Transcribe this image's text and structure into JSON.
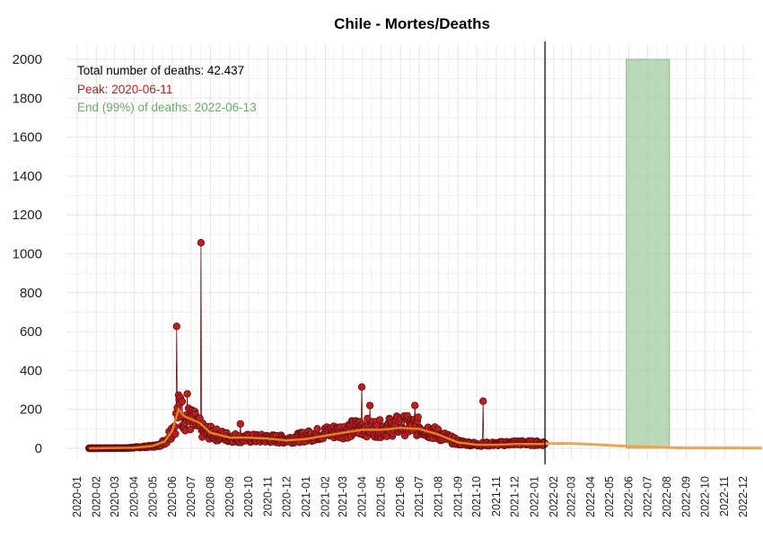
{
  "chart_data": {
    "type": "line",
    "title": "Chile - Mortes/Deaths",
    "xlabel": "",
    "ylabel": "",
    "ylim": [
      0,
      2000
    ],
    "yticks": [
      0,
      200,
      400,
      600,
      800,
      1000,
      1200,
      1400,
      1600,
      1800,
      2000
    ],
    "xlim": [
      "2019-12-15",
      "2023-01-15"
    ],
    "xticks": [
      "2020-01",
      "2020-02",
      "2020-03",
      "2020-04",
      "2020-05",
      "2020-06",
      "2020-07",
      "2020-08",
      "2020-09",
      "2020-10",
      "2020-11",
      "2020-12",
      "2021-01",
      "2021-02",
      "2021-03",
      "2021-04",
      "2021-05",
      "2021-06",
      "2021-07",
      "2021-08",
      "2021-09",
      "2021-10",
      "2021-11",
      "2021-12",
      "2022-01",
      "2022-02",
      "2022-03",
      "2022-04",
      "2022-05",
      "2022-06",
      "2022-07",
      "2022-08",
      "2022-09",
      "2022-10",
      "2022-11",
      "2022-12"
    ],
    "grid": true,
    "annotations": {
      "total": "Total number of deaths: 42.437",
      "peak": "Peak: 2020-06-11",
      "end": "End (99%) of deaths: 2022-06-13"
    },
    "data_cutoff": "2022-01-18",
    "shaded_region": {
      "start": "2022-05-28",
      "end": "2022-08-05",
      "color": "#a5cba3"
    },
    "colors": {
      "observed": "#b22222",
      "observed_edge": "#6b0f0f",
      "smooth": "#e67e22",
      "forecast": "#e8a552",
      "cutoff": "#000000"
    },
    "series": [
      {
        "type": "observed_daily",
        "anchors": [
          [
            "2020-01-20",
            0
          ],
          [
            "2020-03-20",
            1
          ],
          [
            "2020-04-10",
            6
          ],
          [
            "2020-04-25",
            9
          ],
          [
            "2020-05-10",
            14
          ],
          [
            "2020-05-22",
            40
          ],
          [
            "2020-06-05",
            120
          ],
          [
            "2020-06-12",
            210
          ],
          [
            "2020-06-20",
            160
          ],
          [
            "2020-07-05",
            140
          ],
          [
            "2020-07-20",
            90
          ],
          [
            "2020-08-10",
            70
          ],
          [
            "2020-09-01",
            55
          ],
          [
            "2020-10-01",
            50
          ],
          [
            "2020-11-01",
            50
          ],
          [
            "2020-12-01",
            45
          ],
          [
            "2021-01-01",
            60
          ],
          [
            "2021-02-01",
            80
          ],
          [
            "2021-03-01",
            90
          ],
          [
            "2021-04-01",
            110
          ],
          [
            "2021-05-01",
            100
          ],
          [
            "2021-06-01",
            120
          ],
          [
            "2021-07-01",
            110
          ],
          [
            "2021-08-01",
            70
          ],
          [
            "2021-09-01",
            30
          ],
          [
            "2021-10-01",
            20
          ],
          [
            "2021-11-01",
            22
          ],
          [
            "2021-12-01",
            28
          ],
          [
            "2022-01-18",
            25
          ]
        ],
        "spikes": [
          [
            "2020-06-08",
            627
          ],
          [
            "2020-06-14",
            260
          ],
          [
            "2020-06-25",
            280
          ],
          [
            "2020-07-17",
            1057
          ],
          [
            "2020-09-18",
            125
          ],
          [
            "2021-03-31",
            315
          ],
          [
            "2021-04-13",
            220
          ],
          [
            "2021-06-24",
            220
          ],
          [
            "2021-10-11",
            242
          ]
        ]
      },
      {
        "type": "smoothed",
        "points": [
          [
            "2020-01-20",
            0
          ],
          [
            "2020-04-01",
            3
          ],
          [
            "2020-05-01",
            12
          ],
          [
            "2020-05-20",
            35
          ],
          [
            "2020-06-01",
            90
          ],
          [
            "2020-06-11",
            200
          ],
          [
            "2020-06-20",
            165
          ],
          [
            "2020-07-01",
            150
          ],
          [
            "2020-07-15",
            130
          ],
          [
            "2020-08-01",
            80
          ],
          [
            "2020-09-01",
            55
          ],
          [
            "2020-10-01",
            55
          ],
          [
            "2020-11-01",
            50
          ],
          [
            "2020-12-01",
            40
          ],
          [
            "2021-01-01",
            48
          ],
          [
            "2021-02-01",
            65
          ],
          [
            "2021-03-01",
            80
          ],
          [
            "2021-04-01",
            95
          ],
          [
            "2021-05-01",
            95
          ],
          [
            "2021-06-01",
            105
          ],
          [
            "2021-07-01",
            100
          ],
          [
            "2021-08-01",
            70
          ],
          [
            "2021-09-01",
            30
          ],
          [
            "2021-10-01",
            18
          ],
          [
            "2021-11-01",
            18
          ],
          [
            "2021-12-01",
            22
          ],
          [
            "2022-01-18",
            22
          ]
        ]
      },
      {
        "type": "forecast",
        "points": [
          [
            "2022-01-18",
            24
          ],
          [
            "2022-03-01",
            25
          ],
          [
            "2022-04-15",
            18
          ],
          [
            "2022-06-01",
            10
          ],
          [
            "2022-07-15",
            5
          ],
          [
            "2022-09-01",
            2
          ],
          [
            "2022-12-31",
            1
          ]
        ]
      }
    ]
  }
}
